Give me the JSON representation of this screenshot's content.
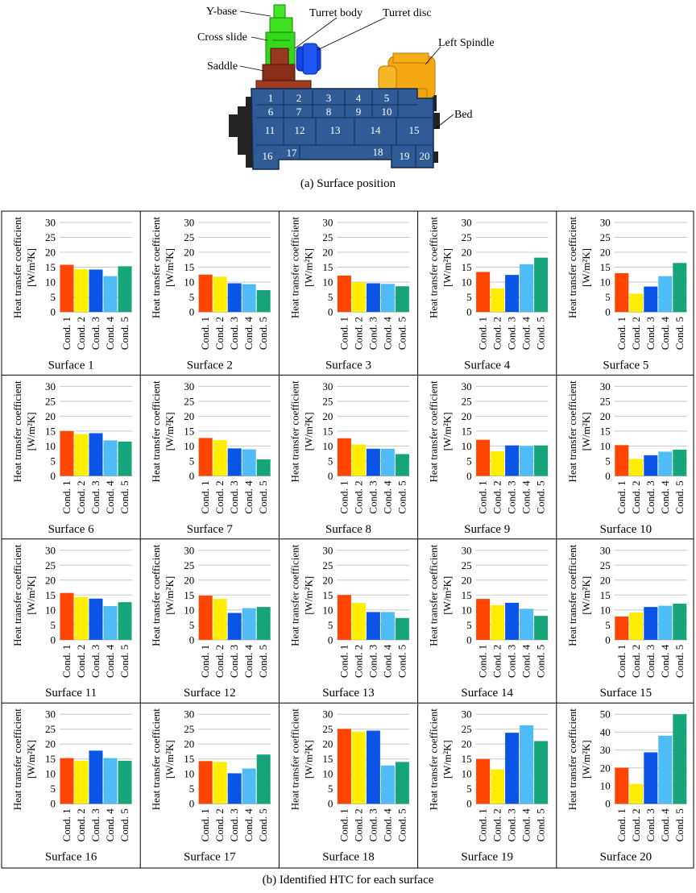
{
  "figure": {
    "labels": {
      "y_base": "Y-base",
      "cross_slide": "Cross slide",
      "turret_body": "Turret body",
      "turret_disc": "Turret disc",
      "left_spindle": "Left Spindle",
      "saddle": "Saddle",
      "bed": "Bed"
    },
    "surface_numbers": [
      "1",
      "2",
      "3",
      "4",
      "5",
      "6",
      "7",
      "8",
      "9",
      "10",
      "11",
      "12",
      "13",
      "14",
      "15",
      "16",
      "17",
      "18",
      "19",
      "20"
    ],
    "caption_a": "(a) Surface position",
    "caption_b": "(b) Identified HTC for each surface"
  },
  "colors": {
    "cond1": "#ff4500",
    "cond2": "#ffee00",
    "cond3": "#0a55e6",
    "cond4": "#4fbcf7",
    "cond5": "#16a57a",
    "bed": "#2f5b97",
    "y_base": "#33e01b",
    "turret_disc": "#1344e8",
    "saddle": "#8a2d18",
    "left_spindle": "#f5a713"
  },
  "chart_data": {
    "type": "bar",
    "ylabel_line1": "Heat transfer coefficient",
    "ylabel_line2": "[W/m²K]",
    "categories": [
      "Cond. 1",
      "Cond. 2",
      "Cond. 3",
      "Cond. 4",
      "Cond. 5"
    ],
    "panels": [
      {
        "title": "Surface 1",
        "ylim": [
          0,
          30
        ],
        "ticks": [
          0,
          5,
          10,
          15,
          20,
          25,
          30
        ],
        "values": [
          15.8,
          14.3,
          14.2,
          12.0,
          15.3
        ]
      },
      {
        "title": "Surface 2",
        "ylim": [
          0,
          30
        ],
        "ticks": [
          0,
          5,
          10,
          15,
          20,
          25,
          30
        ],
        "values": [
          12.5,
          11.8,
          9.6,
          9.3,
          7.3
        ]
      },
      {
        "title": "Surface 3",
        "ylim": [
          0,
          30
        ],
        "ticks": [
          0,
          5,
          10,
          15,
          20,
          25,
          30
        ],
        "values": [
          12.2,
          9.9,
          9.6,
          9.4,
          8.6
        ]
      },
      {
        "title": "Surface 4",
        "ylim": [
          0,
          30
        ],
        "ticks": [
          0,
          5,
          10,
          15,
          20,
          25,
          30
        ],
        "values": [
          13.4,
          7.9,
          12.4,
          16.0,
          18.2
        ]
      },
      {
        "title": "Surface 5",
        "ylim": [
          0,
          30
        ],
        "ticks": [
          0,
          5,
          10,
          15,
          20,
          25,
          30
        ],
        "values": [
          13.0,
          6.1,
          8.5,
          12.0,
          16.4
        ]
      },
      {
        "title": "Surface 6",
        "ylim": [
          0,
          30
        ],
        "ticks": [
          0,
          5,
          10,
          15,
          20,
          25,
          30
        ],
        "values": [
          15.0,
          14.0,
          14.3,
          11.9,
          11.5
        ]
      },
      {
        "title": "Surface 7",
        "ylim": [
          0,
          30
        ],
        "ticks": [
          0,
          5,
          10,
          15,
          20,
          25,
          30
        ],
        "values": [
          12.7,
          12.0,
          9.2,
          8.9,
          5.5
        ]
      },
      {
        "title": "Surface 8",
        "ylim": [
          0,
          30
        ],
        "ticks": [
          0,
          5,
          10,
          15,
          20,
          25,
          30
        ],
        "values": [
          12.6,
          10.5,
          9.1,
          9.1,
          7.3
        ]
      },
      {
        "title": "Surface 9",
        "ylim": [
          0,
          30
        ],
        "ticks": [
          0,
          5,
          10,
          15,
          20,
          25,
          30
        ],
        "values": [
          12.1,
          8.2,
          10.2,
          10.0,
          10.2
        ]
      },
      {
        "title": "Surface 10",
        "ylim": [
          0,
          30
        ],
        "ticks": [
          0,
          5,
          10,
          15,
          20,
          25,
          30
        ],
        "values": [
          10.3,
          5.7,
          6.9,
          8.1,
          8.8
        ]
      },
      {
        "title": "Surface 11",
        "ylim": [
          0,
          30
        ],
        "ticks": [
          0,
          5,
          10,
          15,
          20,
          25,
          30
        ],
        "values": [
          15.7,
          14.3,
          13.8,
          11.3,
          12.6
        ]
      },
      {
        "title": "Surface 12",
        "ylim": [
          0,
          30
        ],
        "ticks": [
          0,
          5,
          10,
          15,
          20,
          25,
          30
        ],
        "values": [
          14.8,
          13.7,
          9.0,
          10.6,
          11.0
        ]
      },
      {
        "title": "Surface 13",
        "ylim": [
          0,
          30
        ],
        "ticks": [
          0,
          5,
          10,
          15,
          20,
          25,
          30
        ],
        "values": [
          15.0,
          12.4,
          9.3,
          9.3,
          7.3
        ]
      },
      {
        "title": "Surface 14",
        "ylim": [
          0,
          30
        ],
        "ticks": [
          0,
          5,
          10,
          15,
          20,
          25,
          30
        ],
        "values": [
          13.7,
          11.6,
          12.4,
          10.4,
          8.0
        ]
      },
      {
        "title": "Surface 15",
        "ylim": [
          0,
          30
        ],
        "ticks": [
          0,
          5,
          10,
          15,
          20,
          25,
          30
        ],
        "values": [
          7.8,
          9.1,
          11.0,
          11.4,
          12.1
        ]
      },
      {
        "title": "Surface 16",
        "ylim": [
          0,
          30
        ],
        "ticks": [
          0,
          5,
          10,
          15,
          20,
          25,
          30
        ],
        "values": [
          15.3,
          14.4,
          17.8,
          15.3,
          14.4
        ]
      },
      {
        "title": "Surface 17",
        "ylim": [
          0,
          30
        ],
        "ticks": [
          0,
          5,
          10,
          15,
          20,
          25,
          30
        ],
        "values": [
          14.3,
          14.0,
          10.2,
          11.8,
          16.5
        ]
      },
      {
        "title": "Surface 18",
        "ylim": [
          0,
          30
        ],
        "ticks": [
          0,
          5,
          10,
          15,
          20,
          25,
          30
        ],
        "values": [
          25.1,
          24.2,
          24.5,
          12.8,
          14.0
        ]
      },
      {
        "title": "Surface 19",
        "ylim": [
          0,
          30
        ],
        "ticks": [
          0,
          5,
          10,
          15,
          20,
          25,
          30
        ],
        "values": [
          15.0,
          11.5,
          23.8,
          26.3,
          21.0
        ]
      },
      {
        "title": "Surface 20",
        "ylim": [
          0,
          50
        ],
        "ticks": [
          0,
          10,
          20,
          30,
          40,
          50
        ],
        "values": [
          20.1,
          11.0,
          28.7,
          38.0,
          50.0
        ]
      }
    ]
  }
}
